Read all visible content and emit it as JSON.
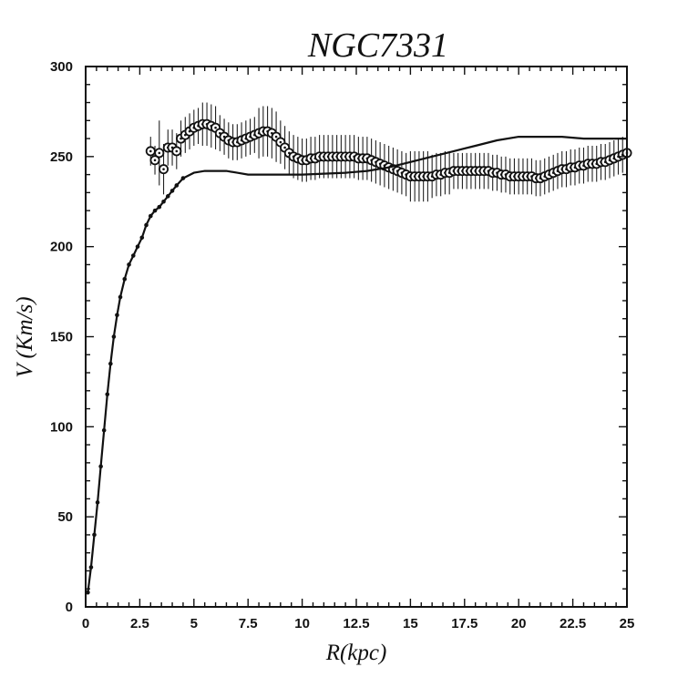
{
  "chart_data": {
    "type": "scatter",
    "title": "NGC7331",
    "xlabel": "R(kpc)",
    "ylabel": "V (Km/s)",
    "xlim": [
      0,
      25
    ],
    "ylim": [
      0,
      300
    ],
    "x_ticks": [
      "0",
      "2.5",
      "5",
      "7.5",
      "10",
      "12.5",
      "15",
      "17.5",
      "20",
      "22.5",
      "25"
    ],
    "y_ticks": [
      "0",
      "50",
      "100",
      "150",
      "200",
      "250",
      "300"
    ],
    "grid": false,
    "legend": "none",
    "series": [
      {
        "style": "line-with-dots",
        "x": [
          0.1,
          0.25,
          0.4,
          0.55,
          0.7,
          0.85,
          1.0,
          1.15,
          1.3,
          1.45,
          1.6,
          1.8,
          2.0,
          2.2,
          2.4,
          2.6,
          2.8,
          3.0,
          3.2,
          3.4,
          3.6,
          3.8,
          4.0,
          4.2,
          4.5,
          5.0,
          5.5,
          6.0,
          6.5,
          7.0,
          7.5,
          8.0,
          9.0,
          10.0,
          11.0,
          12.0,
          13.0,
          14.0,
          15.0,
          16.0,
          17.0,
          18.0,
          19.0,
          20.0,
          21.0,
          22.0,
          23.0,
          24.0,
          25.0
        ],
        "y": [
          8,
          22,
          40,
          58,
          78,
          98,
          118,
          135,
          150,
          162,
          172,
          182,
          190,
          195,
          200,
          205,
          212,
          217,
          220,
          222,
          225,
          228,
          231,
          234,
          238,
          241,
          242,
          242,
          242,
          241,
          240,
          240,
          240,
          240,
          240.5,
          241,
          242,
          244,
          247,
          250,
          253,
          256,
          259,
          261,
          261,
          261,
          260,
          260,
          260
        ]
      },
      {
        "style": "open-circles-with-error-bars",
        "x": [
          3.0,
          3.2,
          3.4,
          3.6,
          3.8,
          4.0,
          4.2,
          4.4,
          4.6,
          4.8,
          5.0,
          5.2,
          5.4,
          5.6,
          5.8,
          6.0,
          6.2,
          6.4,
          6.6,
          6.8,
          7.0,
          7.2,
          7.4,
          7.6,
          7.8,
          8.0,
          8.2,
          8.4,
          8.6,
          8.8,
          9.0,
          9.2,
          9.4,
          9.6,
          9.8,
          10.0,
          10.2,
          10.4,
          10.6,
          10.8,
          11.0,
          11.2,
          11.4,
          11.6,
          11.8,
          12.0,
          12.2,
          12.4,
          12.6,
          12.8,
          13.0,
          13.2,
          13.4,
          13.6,
          13.8,
          14.0,
          14.2,
          14.4,
          14.6,
          14.8,
          15.0,
          15.2,
          15.4,
          15.6,
          15.8,
          16.0,
          16.2,
          16.4,
          16.6,
          16.8,
          17.0,
          17.2,
          17.4,
          17.6,
          17.8,
          18.0,
          18.2,
          18.4,
          18.6,
          18.8,
          19.0,
          19.2,
          19.4,
          19.6,
          19.8,
          20.0,
          20.2,
          20.4,
          20.6,
          20.8,
          21.0,
          21.2,
          21.4,
          21.6,
          21.8,
          22.0,
          22.2,
          22.4,
          22.6,
          22.8,
          23.0,
          23.2,
          23.4,
          23.6,
          23.8,
          24.0,
          24.2,
          24.4,
          24.6,
          24.8,
          25.0
        ],
        "y": [
          253,
          248,
          252,
          243,
          255,
          255,
          253,
          260,
          262,
          264,
          266,
          267,
          268,
          268,
          267,
          266,
          263,
          261,
          259,
          258,
          258,
          259,
          260,
          261,
          262,
          263,
          264,
          264,
          263,
          261,
          258,
          255,
          252,
          250,
          249,
          248,
          248,
          249,
          249,
          250,
          250,
          250,
          250,
          250,
          250,
          250,
          250,
          250,
          249,
          249,
          249,
          248,
          247,
          246,
          245,
          244,
          243,
          242,
          241,
          240,
          239,
          239,
          239,
          239,
          239,
          239,
          240,
          240,
          241,
          241,
          242,
          242,
          242,
          242,
          242,
          242,
          242,
          242,
          242,
          241,
          241,
          240,
          240,
          239,
          239,
          239,
          239,
          239,
          239,
          238,
          238,
          239,
          240,
          241,
          242,
          243,
          243,
          244,
          244,
          245,
          245,
          246,
          246,
          246,
          247,
          247,
          248,
          249,
          250,
          251,
          252
        ],
        "error": [
          8,
          8,
          18,
          14,
          10,
          10,
          10,
          10,
          10,
          10,
          10,
          10,
          12,
          12,
          12,
          12,
          10,
          10,
          10,
          10,
          10,
          10,
          10,
          10,
          10,
          14,
          14,
          14,
          14,
          14,
          12,
          12,
          12,
          12,
          12,
          12,
          12,
          12,
          12,
          12,
          12,
          12,
          12,
          12,
          12,
          12,
          12,
          12,
          12,
          12,
          12,
          12,
          12,
          12,
          12,
          12,
          12,
          12,
          12,
          12,
          14,
          14,
          14,
          14,
          14,
          12,
          12,
          12,
          12,
          12,
          10,
          10,
          10,
          10,
          10,
          10,
          10,
          10,
          10,
          10,
          10,
          10,
          10,
          10,
          10,
          10,
          10,
          10,
          10,
          10,
          10,
          10,
          10,
          10,
          10,
          10,
          10,
          10,
          10,
          10,
          10,
          10,
          10,
          10,
          10,
          10,
          10,
          10,
          10,
          10,
          10
        ]
      }
    ]
  }
}
